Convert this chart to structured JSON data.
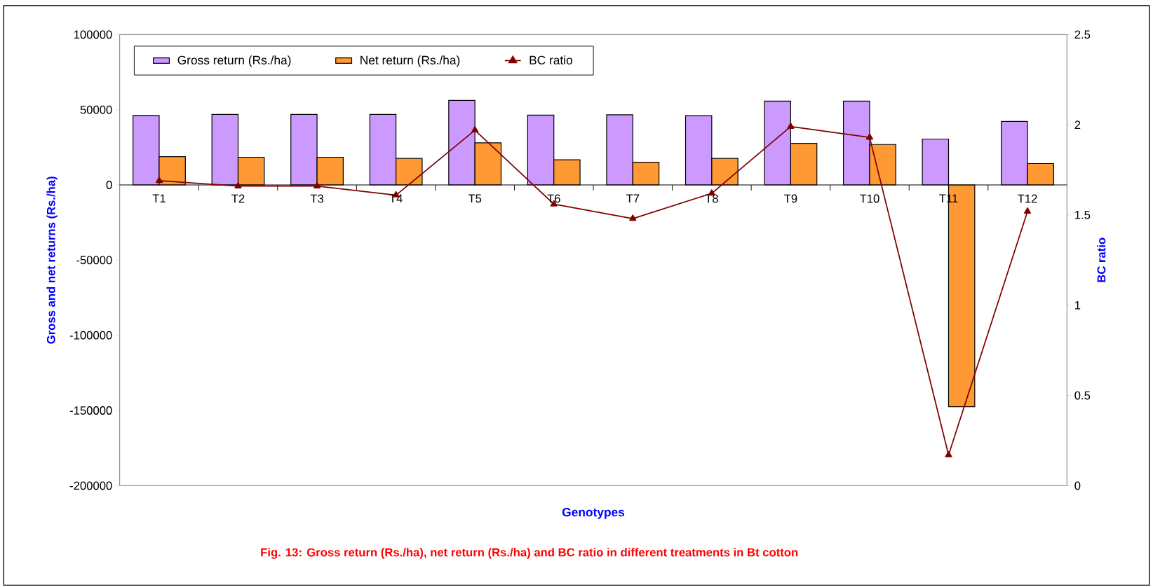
{
  "chart_data": {
    "type": "bar",
    "categories": [
      "T1",
      "T2",
      "T3",
      "T4",
      "T5",
      "T6",
      "T7",
      "T8",
      "T9",
      "T10",
      "T11",
      "T12"
    ],
    "series": [
      {
        "name": "Gross return (Rs./ha)",
        "color": "#cc99ff",
        "values": [
          46200,
          46900,
          46900,
          46900,
          56200,
          46400,
          46600,
          46100,
          55700,
          55700,
          30500,
          42200
        ]
      },
      {
        "name": "Net return (Rs./ha)",
        "color": "#ff9933",
        "values": [
          18800,
          18400,
          18400,
          17600,
          28000,
          16700,
          15100,
          17600,
          27700,
          26900,
          -147500,
          14200
        ]
      },
      {
        "name": "BC ratio",
        "type": "line",
        "axis": "y2",
        "color": "#800000",
        "marker": "triangle",
        "line_style": "solid",
        "values": [
          1.69,
          1.66,
          1.66,
          1.61,
          1.97,
          1.56,
          1.48,
          1.62,
          1.99,
          1.93,
          0.17,
          1.52
        ]
      }
    ],
    "xlabel": "Genotypes",
    "ylabel": "Gross and net returns (Rs./ha)",
    "y2label": "BC ratio",
    "ylim": [
      -200000,
      100000
    ],
    "yticks": [
      -200000,
      -150000,
      -100000,
      -50000,
      0,
      50000,
      100000
    ],
    "y2lim": [
      0,
      2.5
    ],
    "y2ticks": [
      0,
      0.5,
      1,
      1.5,
      2,
      2.5
    ],
    "legend": "top left",
    "grid": false,
    "annotations": [
      "Fig. 13: Gross return (Rs./ha), net return (Rs./ha) and BC ratio in different treatments in Bt cotton"
    ]
  }
}
